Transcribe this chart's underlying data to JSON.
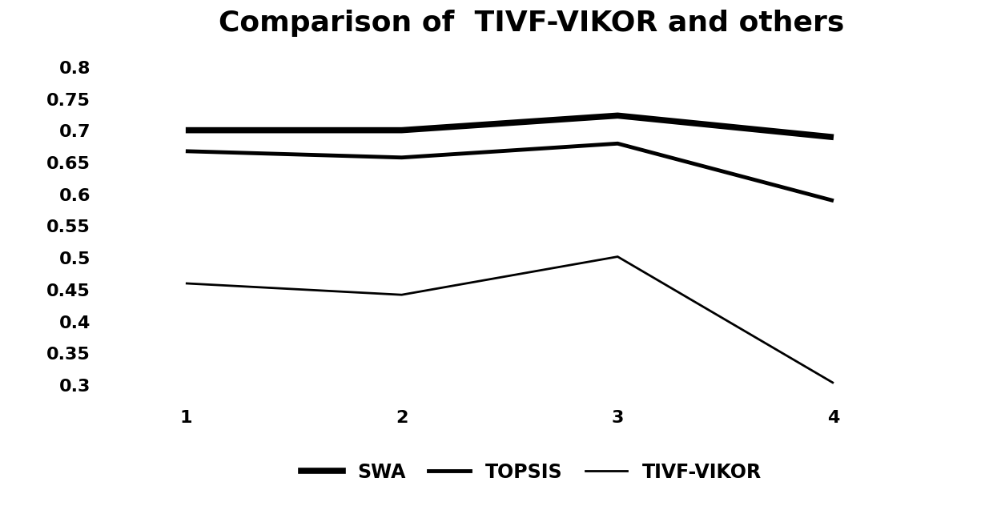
{
  "title": "Comparison of  TIVF-VIKOR and others",
  "x_values": [
    1,
    2,
    3,
    4
  ],
  "x_ticks": [
    1,
    2,
    3,
    4
  ],
  "series": [
    {
      "label": "SWA",
      "y": [
        0.701,
        0.701,
        0.724,
        0.69
      ],
      "linewidth": 5.5,
      "color": "#000000",
      "linestyle": "-"
    },
    {
      "label": "TOPSIS",
      "y": [
        0.668,
        0.658,
        0.68,
        0.59
      ],
      "linewidth": 3.5,
      "color": "#000000",
      "linestyle": "-"
    },
    {
      "label": "TIVF-VIKOR",
      "y": [
        0.46,
        0.442,
        0.502,
        0.303
      ],
      "linewidth": 2.0,
      "color": "#000000",
      "linestyle": "-"
    }
  ],
  "ylim": [
    0.275,
    0.825
  ],
  "yticks": [
    0.3,
    0.35,
    0.4,
    0.45,
    0.5,
    0.55,
    0.6,
    0.65,
    0.7,
    0.75,
    0.8
  ],
  "ytick_labels": [
    "0.3",
    "0.35",
    "0.4",
    "0.45",
    "0.5",
    "0.55",
    "0.6",
    "0.65",
    "0.7",
    "0.75",
    "0.8"
  ],
  "xlim": [
    0.6,
    4.6
  ],
  "background_color": "#ffffff",
  "title_fontsize": 26,
  "tick_fontsize": 16,
  "legend_fontsize": 17
}
